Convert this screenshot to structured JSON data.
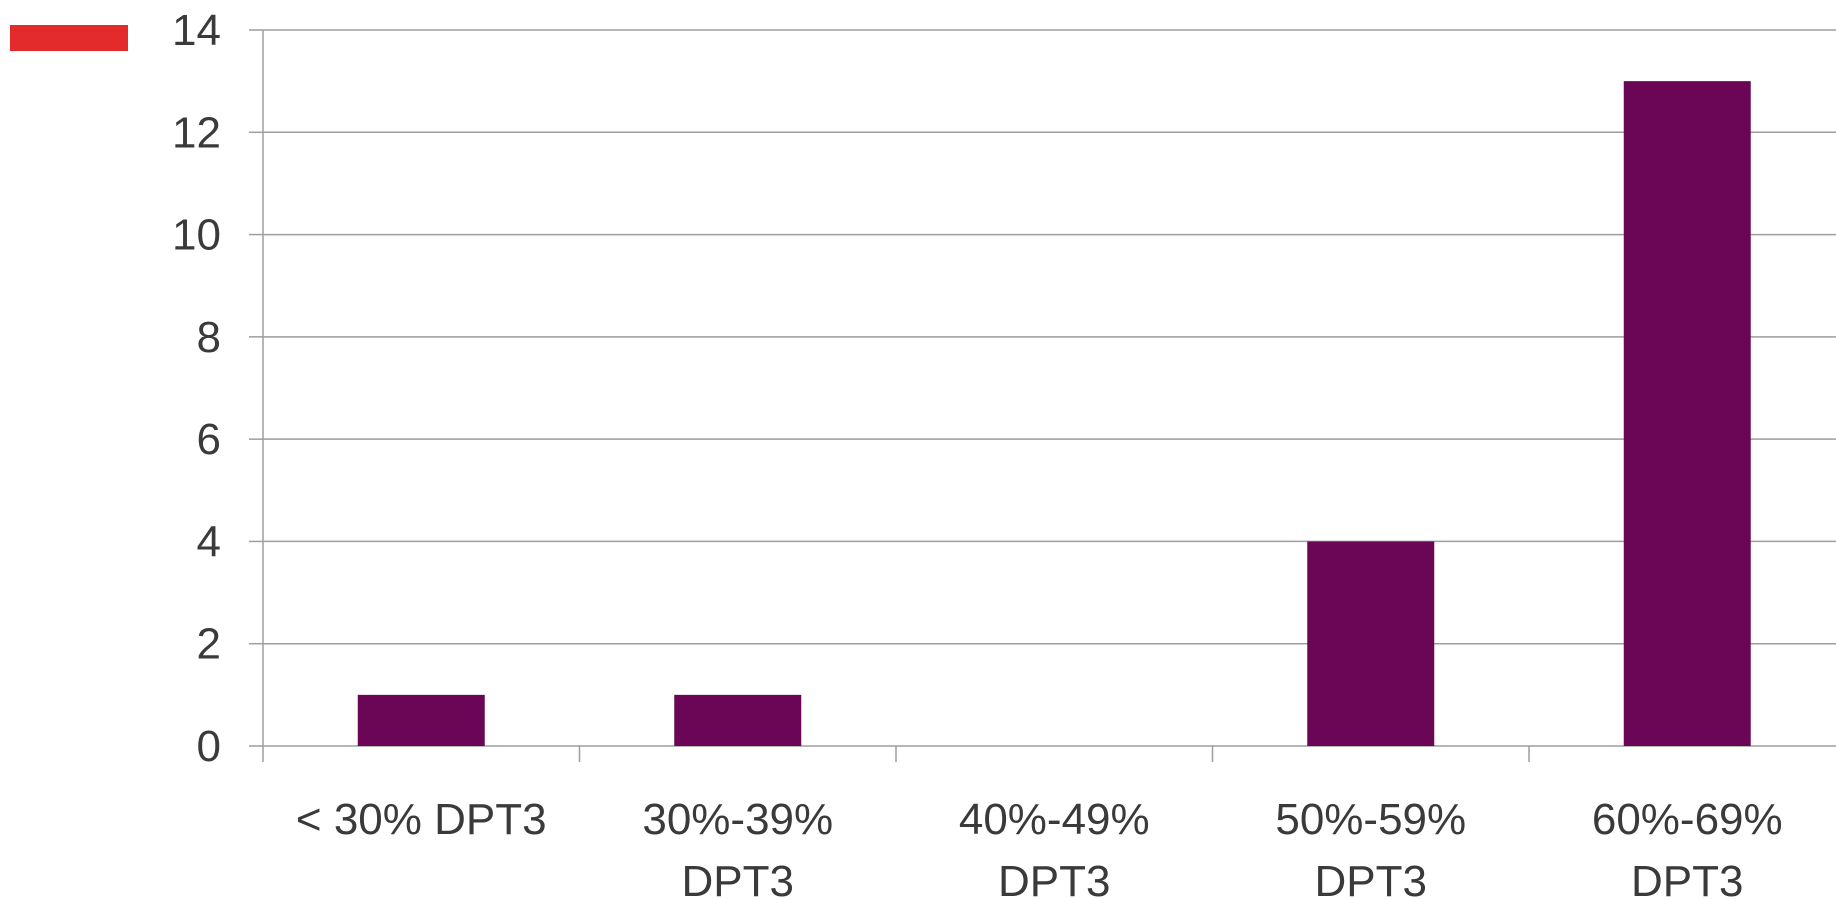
{
  "chart_data": {
    "type": "bar",
    "title": "",
    "xlabel": "",
    "ylabel": "",
    "categories": [
      [
        "< 30% DPT3"
      ],
      [
        "30%-39%",
        "DPT3"
      ],
      [
        "40%-49%",
        "DPT3"
      ],
      [
        "50%-59%",
        "DPT3"
      ],
      [
        "60%-69%",
        "DPT3"
      ]
    ],
    "values": [
      1,
      1,
      0,
      4,
      13
    ],
    "ylim": [
      0,
      14
    ],
    "yticks": [
      0,
      2,
      4,
      6,
      8,
      10,
      12,
      14
    ],
    "grid": true,
    "legend": {
      "placement": "top-left",
      "color": "#e32b2b"
    }
  },
  "colors": {
    "bar": "#6b0657",
    "grid": "#9e9e9e",
    "axis": "#9e9e9e",
    "text": "#3a3a3a",
    "legend_swatch": "#e32b2b"
  }
}
